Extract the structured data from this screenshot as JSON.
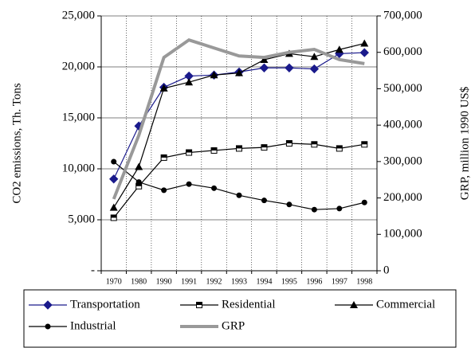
{
  "chart_data": {
    "type": "line",
    "categories": [
      "1970",
      "1980",
      "1990",
      "1991",
      "1992",
      "1993",
      "1994",
      "1995",
      "1996",
      "1997",
      "1998"
    ],
    "y_label": "CO2 emissions, Th. Tons",
    "y2_label": "GRP, million 1990 US$",
    "ylim": [
      0,
      25000
    ],
    "yticks": [
      {
        "value": 0,
        "label": "-"
      },
      {
        "value": 5000,
        "label": "5,000"
      },
      {
        "value": 10000,
        "label": "10,000"
      },
      {
        "value": 15000,
        "label": "15,000"
      },
      {
        "value": 20000,
        "label": "20,000"
      },
      {
        "value": 25000,
        "label": "25,000"
      }
    ],
    "y2lim": [
      0,
      700000
    ],
    "y2ticks": [
      0,
      {
        "value": 100000,
        "label": "100,000"
      },
      {
        "value": 200000,
        "label": "200,000"
      },
      {
        "value": 300000,
        "label": "300,000"
      },
      {
        "value": 400000,
        "label": "400,000"
      },
      {
        "value": 500000,
        "label": "500,000"
      },
      {
        "value": 600000,
        "label": "600,000"
      },
      {
        "value": 700000,
        "label": "700,000"
      }
    ],
    "grid": true,
    "legend": "bottom",
    "series": [
      {
        "name": "Transportation",
        "color": "#1a1a8c",
        "marker": "diamond",
        "values": [
          9000,
          14200,
          18000,
          19100,
          19200,
          19500,
          19900,
          19900,
          19800,
          21300,
          21400
        ]
      },
      {
        "name": "Residential",
        "color": "#000000",
        "marker": "square",
        "values": [
          5200,
          8300,
          11100,
          11600,
          11800,
          12000,
          12100,
          12500,
          12400,
          12000,
          12400
        ]
      },
      {
        "name": "Commercial",
        "color": "#000000",
        "marker": "triangle",
        "values": [
          6200,
          10200,
          17900,
          18500,
          19200,
          19400,
          20700,
          21300,
          21000,
          21700,
          22300
        ]
      },
      {
        "name": "Industrial",
        "color": "#000000",
        "marker": "circle",
        "values": [
          10700,
          8700,
          7900,
          8500,
          8100,
          7400,
          6900,
          6500,
          6000,
          6100,
          6700
        ]
      },
      {
        "name": "GRP",
        "color": "#999999",
        "marker": "none",
        "axis": "y2",
        "values": [
          197000,
          372000,
          586000,
          634000,
          612000,
          590000,
          586000,
          600000,
          608000,
          580000,
          569000
        ]
      }
    ]
  }
}
